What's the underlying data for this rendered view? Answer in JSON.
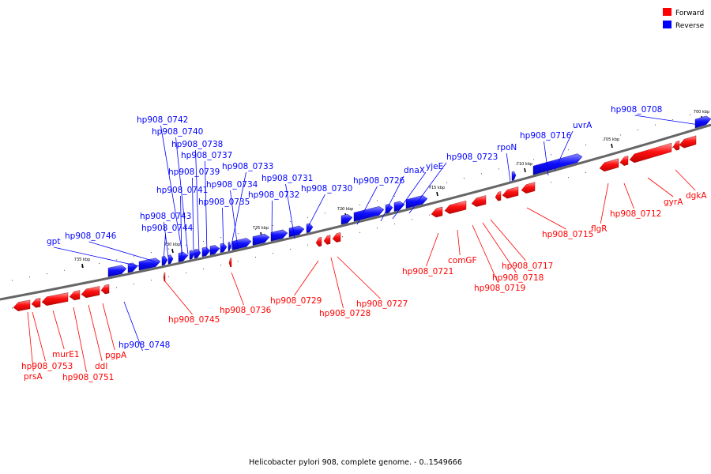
{
  "caption": "Helicobacter pylori 908, complete genome. - 0..1549666",
  "legend": [
    {
      "label": "Forward",
      "color": "#ff0000"
    },
    {
      "label": "Reverse",
      "color": "#0000ff"
    }
  ],
  "colors": {
    "forward": "#ff0000",
    "reverse": "#0000ff",
    "backbone": "#666666"
  },
  "ticks": [
    "700 kbp",
    "705 kbp",
    "710 kbp",
    "715 kbp",
    "720 kbp",
    "725 kbp",
    "730 kbp",
    "735 kbp"
  ],
  "reverse_labels": [
    "hp908_0742",
    "hp908_0740",
    "hp908_0738",
    "hp908_0737",
    "hp908_0739",
    "hp908_0733",
    "hp908_0741",
    "hp908_0734",
    "hp908_0731",
    "hp908_0732",
    "hp908_0735",
    "hp908_0730",
    "hp908_0743",
    "hp908_0744",
    "hp908_0746",
    "gpt",
    "hp908_0726",
    "dnaX",
    "yjeE",
    "hp908_0723",
    "rpoN",
    "hp908_0716",
    "uvrA",
    "hp908_0708",
    "hp908_0748"
  ],
  "forward_labels": [
    "hp908_0745",
    "hp908_0736",
    "hp908_0729",
    "hp908_0728",
    "hp908_0727",
    "hp908_0721",
    "comGF",
    "hp908_0717",
    "hp908_0718",
    "hp908_0719",
    "hp908_0715",
    "flgR",
    "hp908_0712",
    "gyrA",
    "dgkA",
    "hp908_0753",
    "prsA",
    "murE1",
    "hp908_0751",
    "ddl",
    "pgpA"
  ]
}
